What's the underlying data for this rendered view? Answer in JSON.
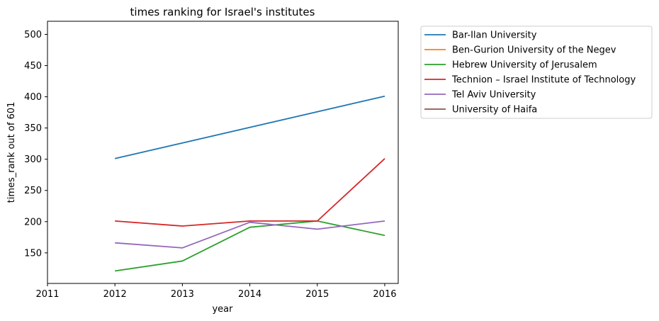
{
  "chart_data": {
    "type": "line",
    "title": "times ranking for Israel's institutes",
    "xlabel": "year",
    "ylabel": "times_rank out of 601",
    "xlim": [
      2011,
      2016.2
    ],
    "ylim": [
      101,
      521
    ],
    "xticks": [
      2011,
      2012,
      2013,
      2014,
      2015,
      2016
    ],
    "yticks": [
      150,
      200,
      250,
      300,
      350,
      400,
      450,
      500
    ],
    "grid": false,
    "legend_position": "outside-top-right",
    "series": [
      {
        "name": "Bar-Ilan University",
        "color": "#1f77b4",
        "x": [
          2012,
          2016
        ],
        "y": [
          301,
          401
        ]
      },
      {
        "name": "Ben-Gurion University of the Negev",
        "color": "#ff7f0e",
        "x": [],
        "y": []
      },
      {
        "name": "Hebrew University of Jerusalem",
        "color": "#2ca02c",
        "x": [
          2012,
          2013,
          2014,
          2015,
          2016
        ],
        "y": [
          121,
          137,
          191,
          201,
          178
        ]
      },
      {
        "name": "Technion – Israel Institute of Technology",
        "color": "#d62728",
        "x": [
          2012,
          2013,
          2014,
          2015,
          2016
        ],
        "y": [
          201,
          193,
          201,
          201,
          301
        ]
      },
      {
        "name": "Tel Aviv University",
        "color": "#9467bd",
        "x": [
          2012,
          2013,
          2014,
          2015,
          2016
        ],
        "y": [
          166,
          158,
          199,
          188,
          201
        ]
      },
      {
        "name": "University of Haifa",
        "color": "#8c564b",
        "x": [],
        "y": []
      }
    ]
  }
}
